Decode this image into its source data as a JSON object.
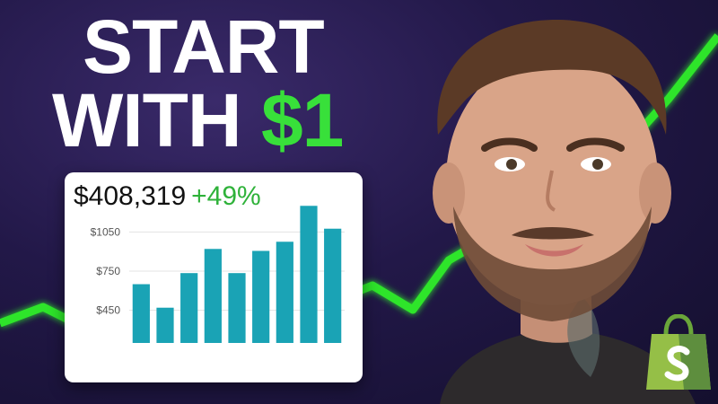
{
  "headline": {
    "line1": "START",
    "line2_prefix": "WITH ",
    "line2_accent": "$1"
  },
  "card": {
    "amount": "$408,319",
    "change": "+49%"
  },
  "chart_data": {
    "type": "bar",
    "title": "",
    "xlabel": "",
    "ylabel": "",
    "yticks": [
      "$1050",
      "$750",
      "$450"
    ],
    "ytick_values": [
      1050,
      750,
      450
    ],
    "ylim": [
      200,
      1300
    ],
    "values": [
      650,
      470,
      735,
      920,
      735,
      905,
      975,
      1250,
      1075
    ],
    "color": "#1aa3b5",
    "grid": true
  },
  "colors": {
    "accent": "#38e03a",
    "background": "#1f1745",
    "trend": "#2fe52a"
  },
  "icons": {
    "brand": "shopify-bag-icon"
  }
}
